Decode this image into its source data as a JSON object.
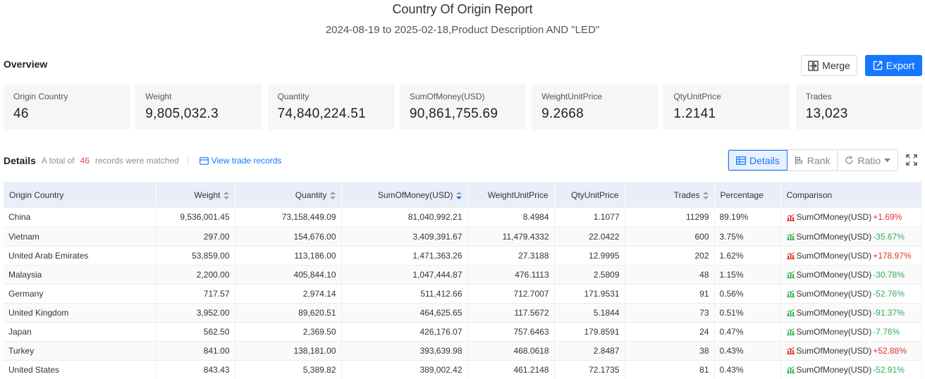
{
  "report": {
    "title": "Country Of Origin Report",
    "subtitle": "2024-08-19 to 2025-02-18,Product Description AND \"LED\""
  },
  "overview": {
    "label": "Overview",
    "merge_label": "Merge",
    "export_label": "Export",
    "stats": [
      {
        "label": "Origin Country",
        "value": "46"
      },
      {
        "label": "Weight",
        "value": "9,805,032.3"
      },
      {
        "label": "Quantity",
        "value": "74,840,224.51"
      },
      {
        "label": "SumOfMoney(USD)",
        "value": "90,861,755.69"
      },
      {
        "label": "WeightUnitPrice",
        "value": "9.2668"
      },
      {
        "label": "QtyUnitPrice",
        "value": "1.2141"
      },
      {
        "label": "Trades",
        "value": "13,023"
      }
    ]
  },
  "details": {
    "title": "Details",
    "total_prefix": "A total of",
    "count": "46",
    "total_suffix": "records were matched",
    "view_link": "View trade records",
    "views": [
      "Details",
      "Rank",
      "Ratio"
    ]
  },
  "table": {
    "columns": [
      "Origin Country",
      "Weight",
      "Quantity",
      "SumOfMoney(USD)",
      "WeightUnitPrice",
      "QtyUnitPrice",
      "Trades",
      "Percentage",
      "Comparison"
    ],
    "rows": [
      {
        "country": "China",
        "weight": "9,536,001.45",
        "quantity": "73,158,449.09",
        "money": "81,040,992.21",
        "wup": "8.4984",
        "qup": "1.1077",
        "trades": "11299",
        "pct": "89.19%",
        "cmp_label": "SumOfMoney(USD)",
        "cmp_value": "+1.69%",
        "dir": "up"
      },
      {
        "country": "Vietnam",
        "weight": "297.00",
        "quantity": "154,676.00",
        "money": "3,409,391.67",
        "wup": "11,479.4332",
        "qup": "22.0422",
        "trades": "600",
        "pct": "3.75%",
        "cmp_label": "SumOfMoney(USD)",
        "cmp_value": "-35.67%",
        "dir": "down"
      },
      {
        "country": "United Arab Emirates",
        "weight": "53,859.00",
        "quantity": "113,186.00",
        "money": "1,471,363.26",
        "wup": "27.3188",
        "qup": "12.9995",
        "trades": "202",
        "pct": "1.62%",
        "cmp_label": "SumOfMoney(USD)",
        "cmp_value": "+178.97%",
        "dir": "up"
      },
      {
        "country": "Malaysia",
        "weight": "2,200.00",
        "quantity": "405,844.10",
        "money": "1,047,444.87",
        "wup": "476.1113",
        "qup": "2.5809",
        "trades": "48",
        "pct": "1.15%",
        "cmp_label": "SumOfMoney(USD)",
        "cmp_value": "-30.78%",
        "dir": "down"
      },
      {
        "country": "Germany",
        "weight": "717.57",
        "quantity": "2,974.14",
        "money": "511,412.66",
        "wup": "712.7007",
        "qup": "171.9531",
        "trades": "91",
        "pct": "0.56%",
        "cmp_label": "SumOfMoney(USD)",
        "cmp_value": "-52.76%",
        "dir": "down"
      },
      {
        "country": "United Kingdom",
        "weight": "3,952.00",
        "quantity": "89,620.51",
        "money": "464,625.65",
        "wup": "117.5672",
        "qup": "5.1844",
        "trades": "73",
        "pct": "0.51%",
        "cmp_label": "SumOfMoney(USD)",
        "cmp_value": "-91.37%",
        "dir": "down"
      },
      {
        "country": "Japan",
        "weight": "562.50",
        "quantity": "2,369.50",
        "money": "426,176.07",
        "wup": "757.6463",
        "qup": "179.8591",
        "trades": "24",
        "pct": "0.47%",
        "cmp_label": "SumOfMoney(USD)",
        "cmp_value": "-7.76%",
        "dir": "down"
      },
      {
        "country": "Turkey",
        "weight": "841.00",
        "quantity": "138,181.00",
        "money": "393,639.98",
        "wup": "468.0618",
        "qup": "2.8487",
        "trades": "38",
        "pct": "0.43%",
        "cmp_label": "SumOfMoney(USD)",
        "cmp_value": "+52.88%",
        "dir": "up"
      },
      {
        "country": "United States",
        "weight": "843.43",
        "quantity": "5,389.82",
        "money": "389,002.42",
        "wup": "461.2148",
        "qup": "72.1735",
        "trades": "81",
        "pct": "0.43%",
        "cmp_label": "SumOfMoney(USD)",
        "cmp_value": "-52.91%",
        "dir": "down"
      }
    ]
  },
  "colors": {
    "accent": "#1677ff",
    "up": "#e5302e",
    "down": "#2fb15a",
    "header_bg": "#e9eef9",
    "card_bg": "#f5f6f8"
  },
  "icons": {
    "merge": "merge-icon",
    "export": "export-icon",
    "view_records": "table-link-icon",
    "details": "grid-icon",
    "rank": "rank-icon",
    "ratio": "ratio-icon",
    "fullscreen": "fullscreen-icon",
    "trend_up": "trend-up-icon",
    "trend_down": "trend-down-icon"
  }
}
